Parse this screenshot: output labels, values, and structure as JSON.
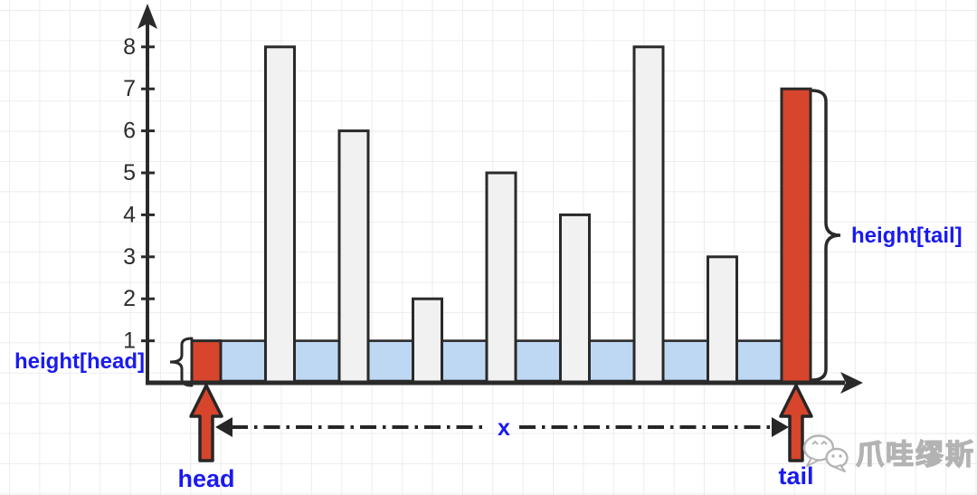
{
  "chart_data": {
    "type": "bar",
    "title": "",
    "xlabel": "",
    "ylabel": "",
    "values": [
      1,
      8,
      6,
      2,
      5,
      4,
      8,
      3,
      7
    ],
    "bar_roles": [
      "head",
      "bar",
      "bar",
      "bar",
      "bar",
      "bar",
      "bar",
      "bar",
      "tail"
    ],
    "water_level": 1,
    "y_ticks": [
      "1",
      "2",
      "3",
      "4",
      "5",
      "6",
      "7",
      "8"
    ],
    "ylim": [
      0,
      9
    ],
    "grid": "light-gray square canvas grid",
    "legend": "none",
    "colors": {
      "bar_fill": "#f1f1f1",
      "bar_stroke": "#2a2a2a",
      "pointer_fill": "#d6452c",
      "water_fill": "#bed8f3",
      "axis": "#2a2a2a",
      "tick_text": "#2d2d2d",
      "label_blue": "#1a1af0"
    }
  },
  "labels": {
    "height_head": "height[head]",
    "height_tail": "height[tail]",
    "head": "head",
    "tail": "tail",
    "x_span": "x"
  },
  "watermark": {
    "text": "爪哇缪斯",
    "logo": "wechat-icon"
  }
}
